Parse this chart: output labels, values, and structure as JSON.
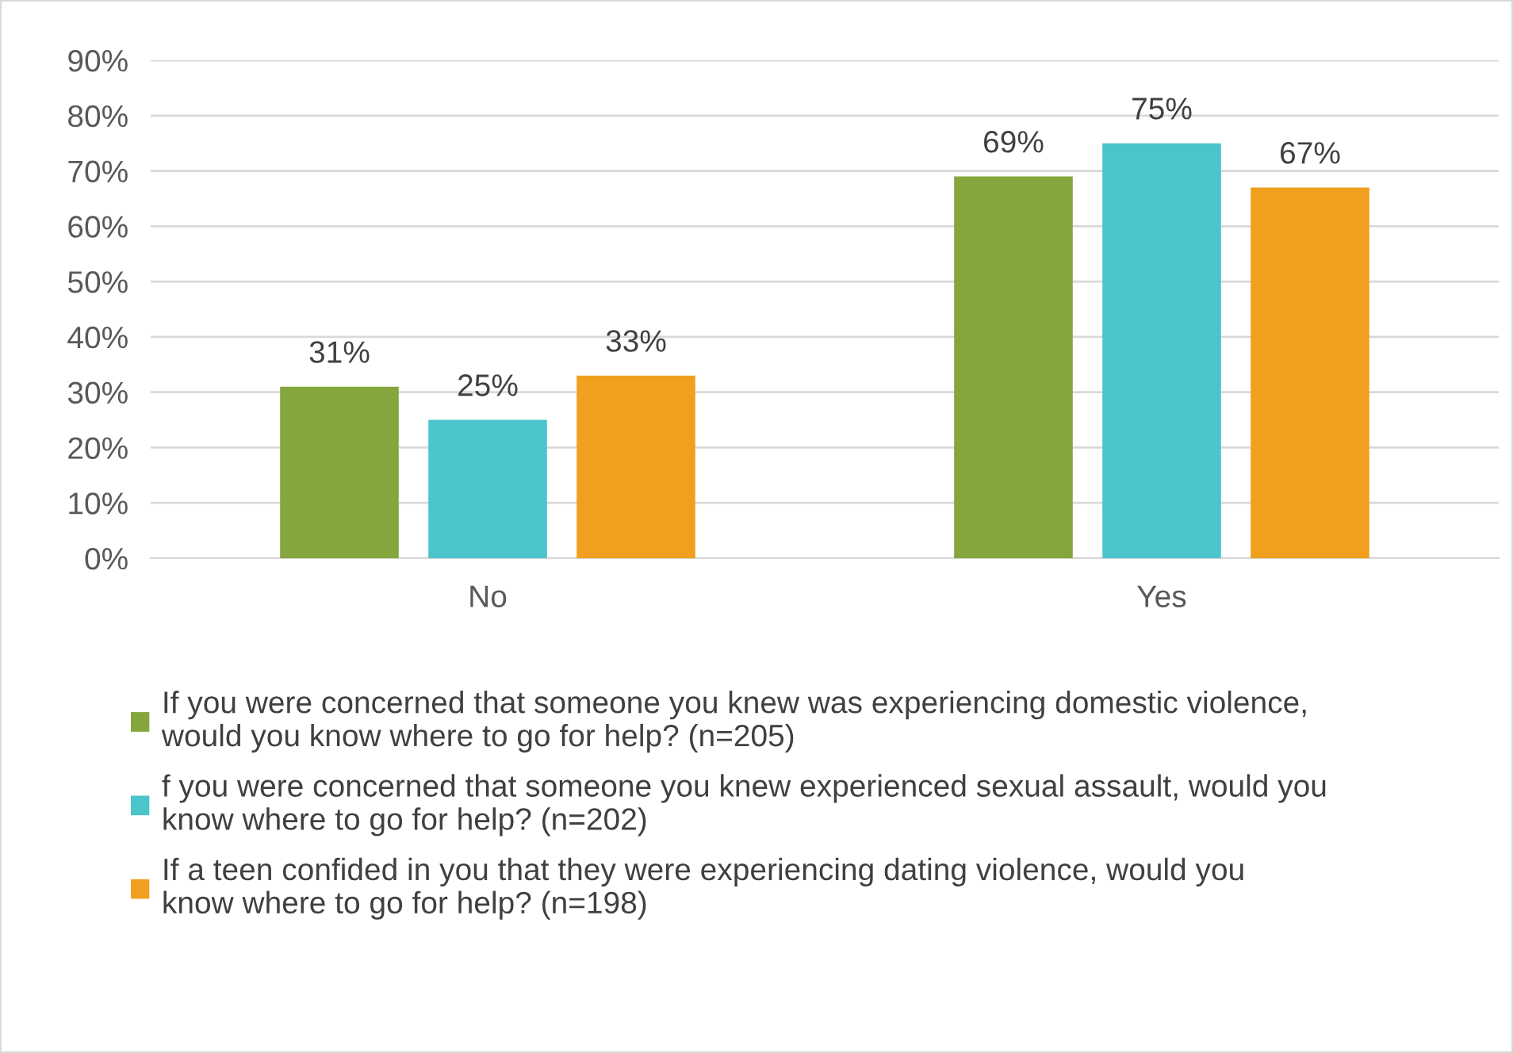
{
  "chart_data": {
    "type": "bar",
    "categories": [
      "No",
      "Yes"
    ],
    "series": [
      {
        "name": " If you were concerned that someone you knew was experiencing domestic violence, would you know where to go for help? (n=205)",
        "color": "#84a63c",
        "values": [
          31,
          69
        ],
        "value_labels": [
          "31%",
          "69%"
        ]
      },
      {
        "name": "f you were concerned that someone you knew experienced sexual assault, would you know where to go for help? (n=202)",
        "color": "#4bc4cc",
        "values": [
          25,
          75
        ],
        "value_labels": [
          "25%",
          "75%"
        ]
      },
      {
        "name": "If a teen confided in you that they were experiencing dating violence, would you know where to go for help? (n=198)",
        "color": "#f0a01e",
        "values": [
          33,
          67
        ],
        "value_labels": [
          "33%",
          "67%"
        ]
      }
    ],
    "ylim": [
      0,
      90
    ],
    "yticks": [
      {
        "value": 0,
        "label": "0%"
      },
      {
        "value": 10,
        "label": "10%"
      },
      {
        "value": 20,
        "label": "20%"
      },
      {
        "value": 30,
        "label": "30%"
      },
      {
        "value": 40,
        "label": "40%"
      },
      {
        "value": 50,
        "label": "50%"
      },
      {
        "value": 60,
        "label": "60%"
      },
      {
        "value": 70,
        "label": "70%"
      },
      {
        "value": 80,
        "label": "80%"
      },
      {
        "value": 90,
        "label": "90%"
      }
    ],
    "grid": "y",
    "legend": "bottom"
  }
}
